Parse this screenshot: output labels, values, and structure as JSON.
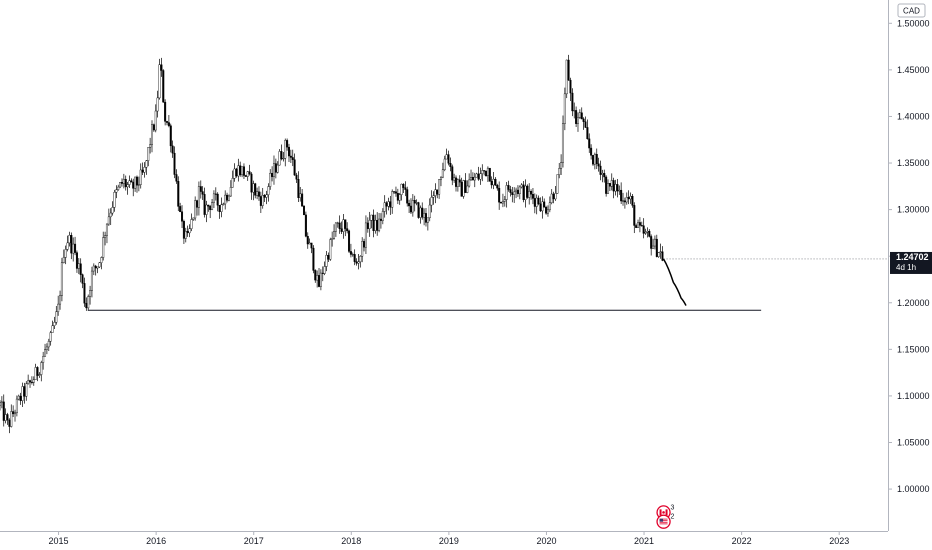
{
  "chart_data": {
    "type": "candlestick",
    "currency": "CAD",
    "last_price": "1.24702",
    "countdown": "4d 1h",
    "ylim": [
      0.955,
      1.525
    ],
    "y_ticks": [
      "1.00000",
      "1.05000",
      "1.10000",
      "1.15000",
      "1.20000",
      "1.25000",
      "1.30000",
      "1.35000",
      "1.40000",
      "1.45000",
      "1.50000"
    ],
    "x_range": [
      2014.4,
      2023.5
    ],
    "x_ticks": [
      "2015",
      "2016",
      "2017",
      "2018",
      "2019",
      "2020",
      "2021",
      "2022",
      "2023"
    ],
    "price_path": [
      [
        2014.4,
        1.09
      ],
      [
        2014.48,
        1.068
      ],
      [
        2014.55,
        1.085
      ],
      [
        2014.62,
        1.1
      ],
      [
        2014.7,
        1.112
      ],
      [
        2014.78,
        1.125
      ],
      [
        2014.85,
        1.145
      ],
      [
        2014.92,
        1.16
      ],
      [
        2015.0,
        1.195
      ],
      [
        2015.05,
        1.255
      ],
      [
        2015.1,
        1.27
      ],
      [
        2015.17,
        1.252
      ],
      [
        2015.22,
        1.235
      ],
      [
        2015.28,
        1.195
      ],
      [
        2015.34,
        1.23
      ],
      [
        2015.42,
        1.245
      ],
      [
        2015.5,
        1.29
      ],
      [
        2015.58,
        1.315
      ],
      [
        2015.66,
        1.33
      ],
      [
        2015.74,
        1.322
      ],
      [
        2015.82,
        1.33
      ],
      [
        2015.88,
        1.34
      ],
      [
        2015.95,
        1.38
      ],
      [
        2016.0,
        1.4
      ],
      [
        2016.04,
        1.46
      ],
      [
        2016.09,
        1.4
      ],
      [
        2016.14,
        1.385
      ],
      [
        2016.2,
        1.335
      ],
      [
        2016.26,
        1.28
      ],
      [
        2016.32,
        1.265
      ],
      [
        2016.38,
        1.295
      ],
      [
        2016.44,
        1.32
      ],
      [
        2016.5,
        1.3
      ],
      [
        2016.58,
        1.31
      ],
      [
        2016.66,
        1.305
      ],
      [
        2016.74,
        1.32
      ],
      [
        2016.82,
        1.345
      ],
      [
        2016.9,
        1.34
      ],
      [
        2016.96,
        1.33
      ],
      [
        2017.02,
        1.318
      ],
      [
        2017.1,
        1.31
      ],
      [
        2017.2,
        1.34
      ],
      [
        2017.28,
        1.36
      ],
      [
        2017.34,
        1.37
      ],
      [
        2017.4,
        1.35
      ],
      [
        2017.48,
        1.31
      ],
      [
        2017.54,
        1.27
      ],
      [
        2017.6,
        1.25
      ],
      [
        2017.66,
        1.215
      ],
      [
        2017.72,
        1.24
      ],
      [
        2017.78,
        1.26
      ],
      [
        2017.84,
        1.28
      ],
      [
        2017.92,
        1.282
      ],
      [
        2017.98,
        1.26
      ],
      [
        2018.04,
        1.24
      ],
      [
        2018.1,
        1.255
      ],
      [
        2018.18,
        1.29
      ],
      [
        2018.26,
        1.28
      ],
      [
        2018.34,
        1.3
      ],
      [
        2018.44,
        1.315
      ],
      [
        2018.52,
        1.32
      ],
      [
        2018.6,
        1.305
      ],
      [
        2018.68,
        1.3
      ],
      [
        2018.76,
        1.29
      ],
      [
        2018.84,
        1.31
      ],
      [
        2018.92,
        1.34
      ],
      [
        2018.98,
        1.362
      ],
      [
        2019.04,
        1.335
      ],
      [
        2019.12,
        1.32
      ],
      [
        2019.2,
        1.33
      ],
      [
        2019.3,
        1.335
      ],
      [
        2019.4,
        1.345
      ],
      [
        2019.48,
        1.322
      ],
      [
        2019.54,
        1.31
      ],
      [
        2019.62,
        1.325
      ],
      [
        2019.72,
        1.322
      ],
      [
        2019.82,
        1.315
      ],
      [
        2019.92,
        1.31
      ],
      [
        2019.98,
        1.3
      ],
      [
        2020.06,
        1.315
      ],
      [
        2020.14,
        1.34
      ],
      [
        2020.18,
        1.4
      ],
      [
        2020.21,
        1.46
      ],
      [
        2020.25,
        1.42
      ],
      [
        2020.3,
        1.395
      ],
      [
        2020.36,
        1.4
      ],
      [
        2020.42,
        1.37
      ],
      [
        2020.5,
        1.35
      ],
      [
        2020.56,
        1.345
      ],
      [
        2020.62,
        1.322
      ],
      [
        2020.7,
        1.325
      ],
      [
        2020.78,
        1.315
      ],
      [
        2020.86,
        1.31
      ],
      [
        2020.92,
        1.28
      ],
      [
        2020.98,
        1.275
      ],
      [
        2021.04,
        1.27
      ],
      [
        2021.1,
        1.262
      ],
      [
        2021.16,
        1.255
      ],
      [
        2021.2,
        1.247
      ]
    ],
    "projection": [
      [
        2021.2,
        1.247
      ],
      [
        2021.3,
        1.222
      ],
      [
        2021.38,
        1.205
      ],
      [
        2021.43,
        1.197
      ]
    ],
    "support_line": {
      "value": 1.192,
      "x_start": 2015.3,
      "x_end": 2022.2
    },
    "events": [
      {
        "flag": "CA",
        "count": "3",
        "x": 2021.2,
        "y": 0.975
      },
      {
        "flag": "US",
        "count": "2",
        "x": 2021.2,
        "y": 0.965
      }
    ]
  }
}
